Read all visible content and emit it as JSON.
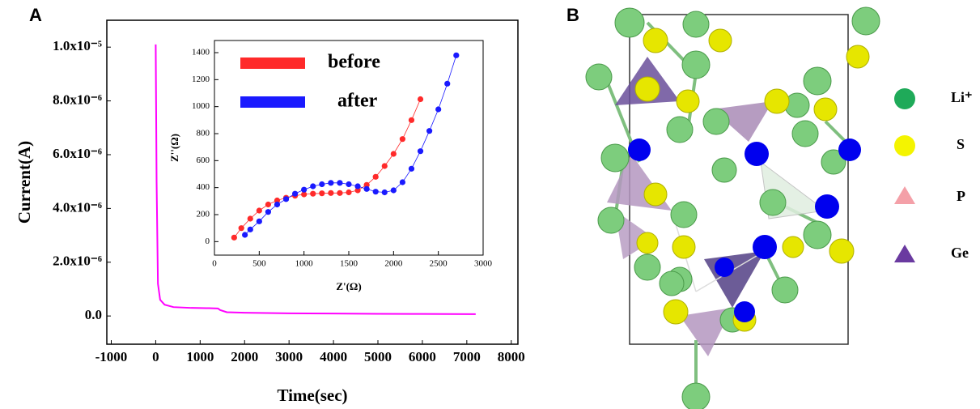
{
  "panel_labels": [
    "A",
    "B"
  ],
  "chart_data": [
    {
      "type": "line",
      "x_label": "Time(sec)",
      "y_label": "Current(A)",
      "color": "#ff00ff",
      "x": [
        0,
        20,
        50,
        100,
        200,
        400,
        800,
        1200,
        1400,
        1450,
        1600,
        2000,
        3000,
        4000,
        5000,
        6000,
        7200
      ],
      "values": [
        1.01e-05,
        5e-06,
        1.2e-06,
        6e-07,
        4.2e-07,
        3.3e-07,
        3e-07,
        2.9e-07,
        2.8e-07,
        2.2e-07,
        1.4e-07,
        1.2e-07,
        1e-07,
        9e-08,
        8e-08,
        7.5e-08,
        7e-08
      ],
      "xlim": [
        -1100,
        8150
      ],
      "ylim": [
        -1.05e-06,
        1.1e-05
      ],
      "xticks": [
        -1000,
        0,
        1000,
        2000,
        3000,
        4000,
        5000,
        6000,
        7000,
        8000
      ],
      "yticks": [
        {
          "value": 0,
          "label": "0.0"
        },
        {
          "value": 2e-06,
          "label": "2.0x10⁻⁶"
        },
        {
          "value": 4e-06,
          "label": "4.0x10⁻⁶"
        },
        {
          "value": 6e-06,
          "label": "6.0x10⁻⁶"
        },
        {
          "value": 8e-06,
          "label": "8.0x10⁻⁶"
        },
        {
          "value": 1e-05,
          "label": "1.0x10⁻⁵"
        }
      ]
    },
    {
      "type": "line",
      "markers": true,
      "x_label": "Z'(Ω)",
      "y_label": "Z''(Ω)",
      "xlim": [
        0,
        3000
      ],
      "ylim": [
        -100,
        1490
      ],
      "xticks": [
        0,
        500,
        1000,
        1500,
        2000,
        2500,
        3000
      ],
      "yticks": [
        0,
        200,
        400,
        600,
        800,
        1000,
        1200,
        1400
      ],
      "series": [
        {
          "name": "before",
          "color": "#ff2a2a",
          "x": [
            220,
            300,
            400,
            500,
            600,
            700,
            800,
            900,
            1000,
            1100,
            1200,
            1300,
            1400,
            1500,
            1600,
            1700,
            1800,
            1900,
            2000,
            2100,
            2200,
            2300
          ],
          "values": [
            30,
            100,
            170,
            230,
            275,
            305,
            325,
            340,
            350,
            355,
            358,
            360,
            360,
            365,
            380,
            420,
            480,
            560,
            650,
            760,
            900,
            1055
          ]
        },
        {
          "name": "after",
          "color": "#1a1aff",
          "x": [
            340,
            400,
            500,
            600,
            700,
            800,
            900,
            1000,
            1100,
            1200,
            1300,
            1400,
            1500,
            1600,
            1700,
            1800,
            1900,
            2000,
            2100,
            2200,
            2300,
            2400,
            2500,
            2600,
            2700
          ],
          "values": [
            50,
            90,
            150,
            220,
            275,
            315,
            355,
            385,
            410,
            425,
            435,
            435,
            425,
            410,
            390,
            370,
            365,
            380,
            440,
            540,
            670,
            820,
            980,
            1170,
            1380
          ]
        }
      ]
    }
  ],
  "structure_legend": [
    "Li⁺",
    "S",
    "P",
    "Ge"
  ]
}
